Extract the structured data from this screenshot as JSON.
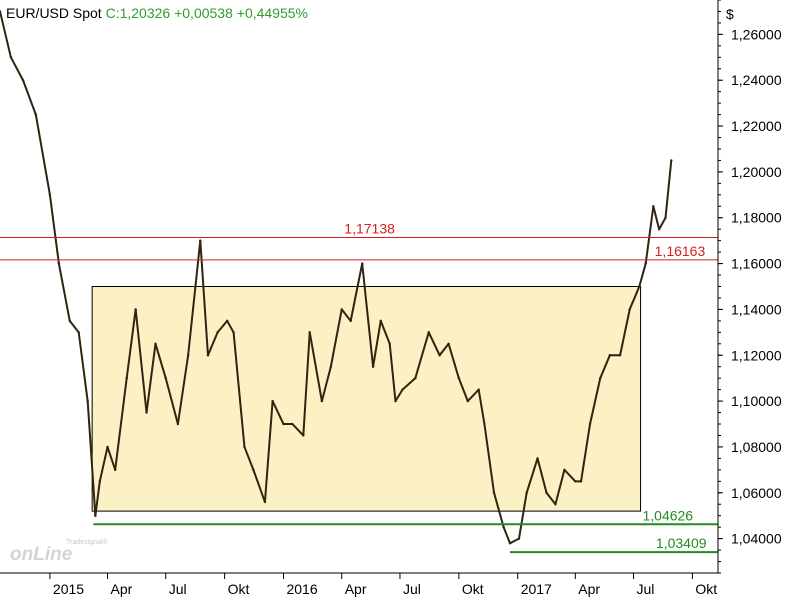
{
  "header": {
    "symbol": "EUR/USD Spot",
    "quote": "C:1,20326 +0,00538 +0,44955%"
  },
  "watermark": {
    "small_text": "Tradesignal®",
    "big_text": "onLine"
  },
  "colors": {
    "price": "#2e2410",
    "resistance": "#d42020",
    "support": "#228b22",
    "range_fill": "#fbf1c4",
    "grid": "#000000"
  },
  "chart_data": {
    "type": "line",
    "title": "EUR/USD Spot",
    "ylabel": "$",
    "ylim": [
      1.025,
      1.275
    ],
    "y_ticks": [
      "1,04000",
      "1,06000",
      "1,08000",
      "1,10000",
      "1,12000",
      "1,14000",
      "1,16000",
      "1,18000",
      "1,20000",
      "1,22000",
      "1,24000",
      "1,26000"
    ],
    "y_tick_values": [
      1.04,
      1.06,
      1.08,
      1.1,
      1.12,
      1.14,
      1.16,
      1.18,
      1.2,
      1.22,
      1.24,
      1.26
    ],
    "x_ticks": [
      "2015",
      "Apr",
      "Jul",
      "Okt",
      "2016",
      "Apr",
      "Jul",
      "Okt",
      "2017",
      "Apr",
      "Jul",
      "Okt"
    ],
    "x_tick_dates": [
      "2015-01-01",
      "2015-04-01",
      "2015-07-01",
      "2015-10-01",
      "2016-01-01",
      "2016-04-01",
      "2016-07-01",
      "2016-10-01",
      "2017-01-01",
      "2017-04-01",
      "2017-07-01",
      "2017-10-01"
    ],
    "xlim": [
      "2014-10-15",
      "2017-11-10"
    ],
    "series": [
      {
        "dates": [
          "2014-10-15",
          "2014-11-01",
          "2014-11-20",
          "2014-12-10",
          "2015-01-01",
          "2015-01-15",
          "2015-02-01",
          "2015-02-15",
          "2015-03-01",
          "2015-03-13",
          "2015-03-20",
          "2015-04-01",
          "2015-04-13",
          "2015-05-01",
          "2015-05-15",
          "2015-06-01",
          "2015-06-15",
          "2015-07-01",
          "2015-07-20",
          "2015-08-05",
          "2015-08-24",
          "2015-09-05",
          "2015-09-20",
          "2015-10-05",
          "2015-10-15",
          "2015-11-01",
          "2015-11-15",
          "2015-12-03",
          "2015-12-15",
          "2016-01-01",
          "2016-01-15",
          "2016-02-01",
          "2016-02-11",
          "2016-03-01",
          "2016-03-15",
          "2016-04-01",
          "2016-04-15",
          "2016-05-03",
          "2016-05-20",
          "2016-06-01",
          "2016-06-15",
          "2016-06-24",
          "2016-07-05",
          "2016-07-25",
          "2016-08-15",
          "2016-09-01",
          "2016-09-15",
          "2016-10-01",
          "2016-10-15",
          "2016-11-01",
          "2016-11-10",
          "2016-11-25",
          "2016-12-10",
          "2016-12-20",
          "2017-01-03",
          "2017-01-15",
          "2017-02-01",
          "2017-02-15",
          "2017-03-01",
          "2017-03-15",
          "2017-04-01",
          "2017-04-10",
          "2017-04-24",
          "2017-05-10",
          "2017-05-25",
          "2017-06-10",
          "2017-06-25",
          "2017-07-10",
          "2017-07-20",
          "2017-08-01",
          "2017-08-10",
          "2017-08-20",
          "2017-08-29"
        ],
        "values": [
          1.27,
          1.25,
          1.24,
          1.225,
          1.19,
          1.16,
          1.135,
          1.13,
          1.1,
          1.05,
          1.065,
          1.08,
          1.07,
          1.11,
          1.14,
          1.095,
          1.125,
          1.11,
          1.09,
          1.12,
          1.17,
          1.12,
          1.13,
          1.135,
          1.13,
          1.08,
          1.07,
          1.056,
          1.1,
          1.09,
          1.09,
          1.085,
          1.13,
          1.1,
          1.115,
          1.14,
          1.135,
          1.16,
          1.115,
          1.135,
          1.125,
          1.1,
          1.105,
          1.11,
          1.13,
          1.12,
          1.125,
          1.11,
          1.1,
          1.105,
          1.09,
          1.06,
          1.045,
          1.038,
          1.04,
          1.06,
          1.075,
          1.06,
          1.055,
          1.07,
          1.065,
          1.065,
          1.09,
          1.11,
          1.12,
          1.12,
          1.14,
          1.15,
          1.16,
          1.185,
          1.175,
          1.18,
          1.205
        ]
      }
    ],
    "range_box": {
      "start": "2015-03-08",
      "end": "2017-07-12",
      "top": 1.15,
      "bottom": 1.052
    },
    "levels": [
      {
        "label": "1,17138",
        "value": 1.17138,
        "kind": "resistance",
        "start": "2014-10-15",
        "end": "2017-11-10",
        "label_at": "2016-04-05"
      },
      {
        "label": "1,16163",
        "value": 1.16163,
        "kind": "resistance",
        "start": "2014-10-15",
        "end": "2017-11-10",
        "label_at": "2017-08-03"
      },
      {
        "label": "1,04626",
        "value": 1.04626,
        "kind": "support",
        "start": "2015-03-10",
        "end": "2017-11-10",
        "label_at": "2017-07-15"
      },
      {
        "label": "1,03409",
        "value": 1.03409,
        "kind": "support",
        "start": "2016-12-20",
        "end": "2017-11-10",
        "label_at": "2017-08-05"
      }
    ]
  }
}
